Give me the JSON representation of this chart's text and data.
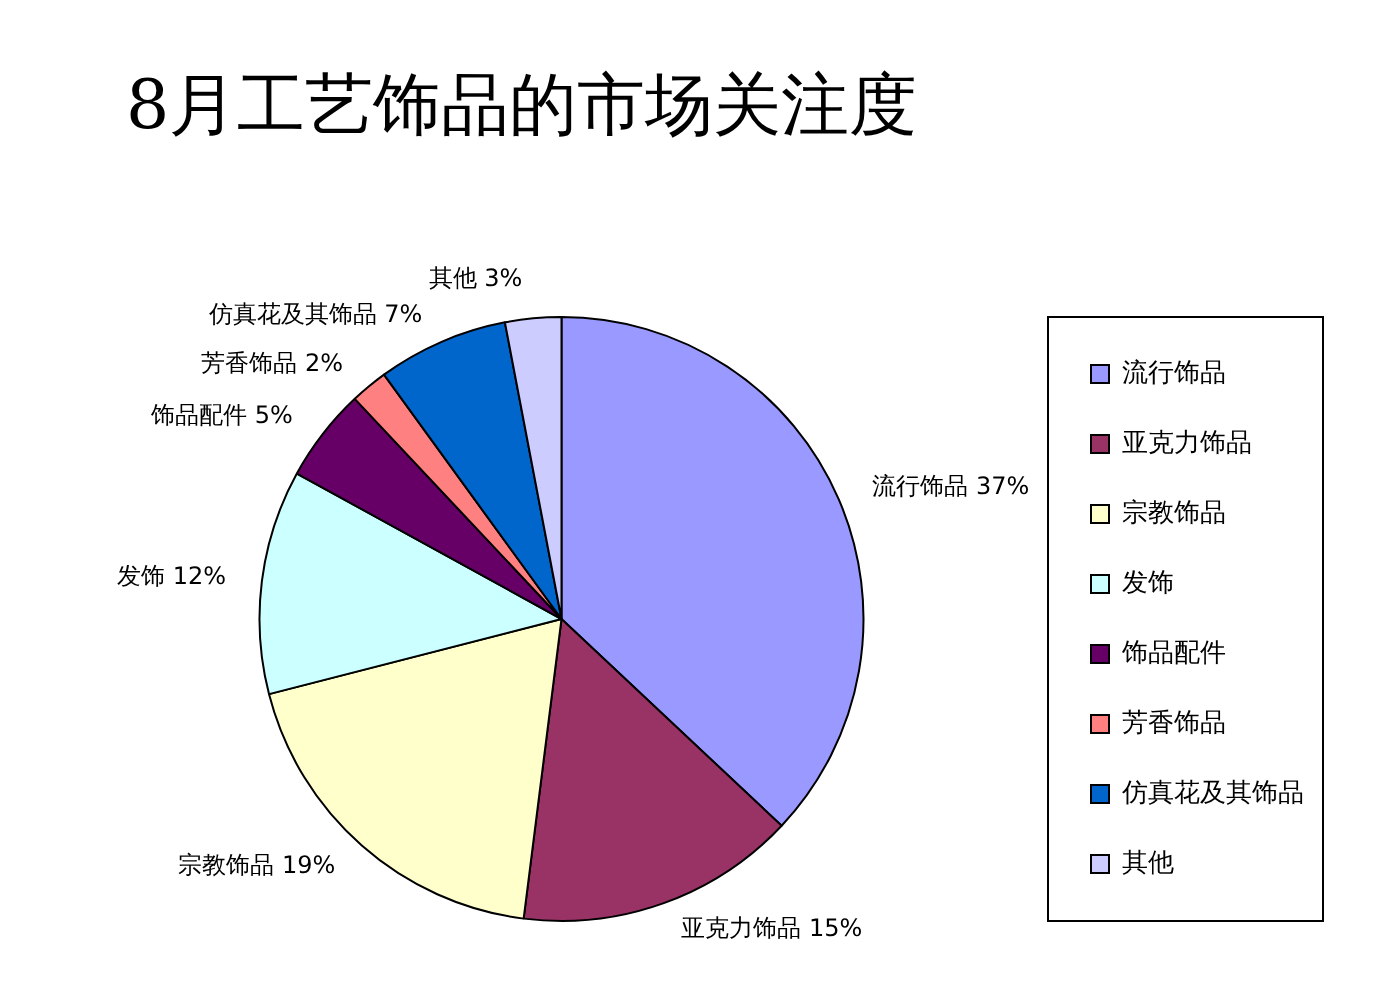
{
  "chart_data": {
    "type": "pie",
    "title": "8月工艺饰品的市场关注度",
    "categories": [
      "流行饰品",
      "亚克力饰品",
      "宗教饰品",
      "发饰",
      "饰品配件",
      "芳香饰品",
      "仿真花及其饰品",
      "其他"
    ],
    "values": [
      37,
      15,
      19,
      12,
      5,
      2,
      7,
      3
    ],
    "colors": [
      "#9999ff",
      "#993366",
      "#ffffcc",
      "#ccffff",
      "#660066",
      "#ff8080",
      "#0066cc",
      "#ccccff"
    ],
    "value_labels": [
      "37%",
      "15%",
      "19%",
      "12%",
      "5%",
      "2%",
      "7%",
      "3%"
    ],
    "legend": "right"
  }
}
